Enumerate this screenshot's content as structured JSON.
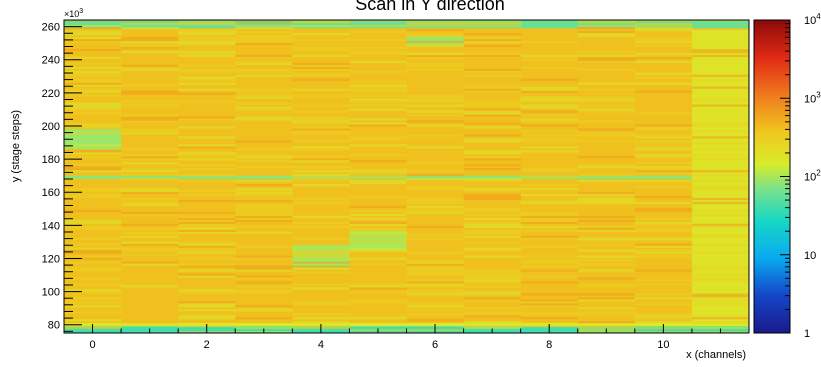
{
  "chart_data": {
    "type": "heatmap",
    "title": "Scan in Y direction",
    "xlabel": "x (channels)",
    "ylabel": "y (stage steps)",
    "y_exponent": "×10",
    "y_exponent_power": "3",
    "xlim": [
      -0.5,
      11.5
    ],
    "ylim": [
      75,
      264
    ],
    "x_ticks": [
      "0",
      "2",
      "4",
      "6",
      "8",
      "10"
    ],
    "x_tick_values": [
      0,
      2,
      4,
      6,
      8,
      10
    ],
    "y_ticks": [
      "80",
      "100",
      "120",
      "140",
      "160",
      "180",
      "200",
      "220",
      "240",
      "260"
    ],
    "y_tick_values": [
      80,
      100,
      120,
      140,
      160,
      180,
      200,
      220,
      240,
      260
    ],
    "colorbar": {
      "scale": "log",
      "range": [
        1,
        10000
      ],
      "labels": [
        {
          "base": "1",
          "exp": "",
          "value": 1
        },
        {
          "base": "10",
          "exp": "",
          "value": 10
        },
        {
          "base": "10",
          "exp": "2",
          "value": 100
        },
        {
          "base": "10",
          "exp": "3",
          "value": 1000
        },
        {
          "base": "10",
          "exp": "4",
          "value": 10000
        }
      ]
    },
    "channels": [
      0,
      1,
      2,
      3,
      4,
      5,
      6,
      7,
      8,
      9,
      10,
      11
    ],
    "typical_count": 400,
    "features": [
      {
        "x_range": [
          -0.5,
          11.5
        ],
        "y_range": [
          75,
          79
        ],
        "count": 40
      },
      {
        "x_range": [
          -0.5,
          11.5
        ],
        "y_range": [
          79,
          81
        ],
        "count": 150
      },
      {
        "x_range": [
          -0.5,
          11.5
        ],
        "y_range": [
          259,
          264
        ],
        "count": 60
      },
      {
        "x_range": [
          -0.5,
          11.5
        ],
        "y_range": [
          168,
          170
        ],
        "count": 80
      },
      {
        "x_range": [
          -0.5,
          0.5
        ],
        "y_range": [
          186,
          198
        ],
        "count": 90
      },
      {
        "x_range": [
          3.5,
          4.5
        ],
        "y_range": [
          114,
          128
        ],
        "count": 100
      },
      {
        "x_range": [
          4.5,
          5.5
        ],
        "y_range": [
          125,
          137
        ],
        "count": 100
      },
      {
        "x_range": [
          5.5,
          6.5
        ],
        "y_range": [
          249,
          254
        ],
        "count": 90
      },
      {
        "x_range": [
          10.5,
          11.5
        ],
        "y_range": [
          80,
          258
        ],
        "count": 180
      }
    ]
  }
}
